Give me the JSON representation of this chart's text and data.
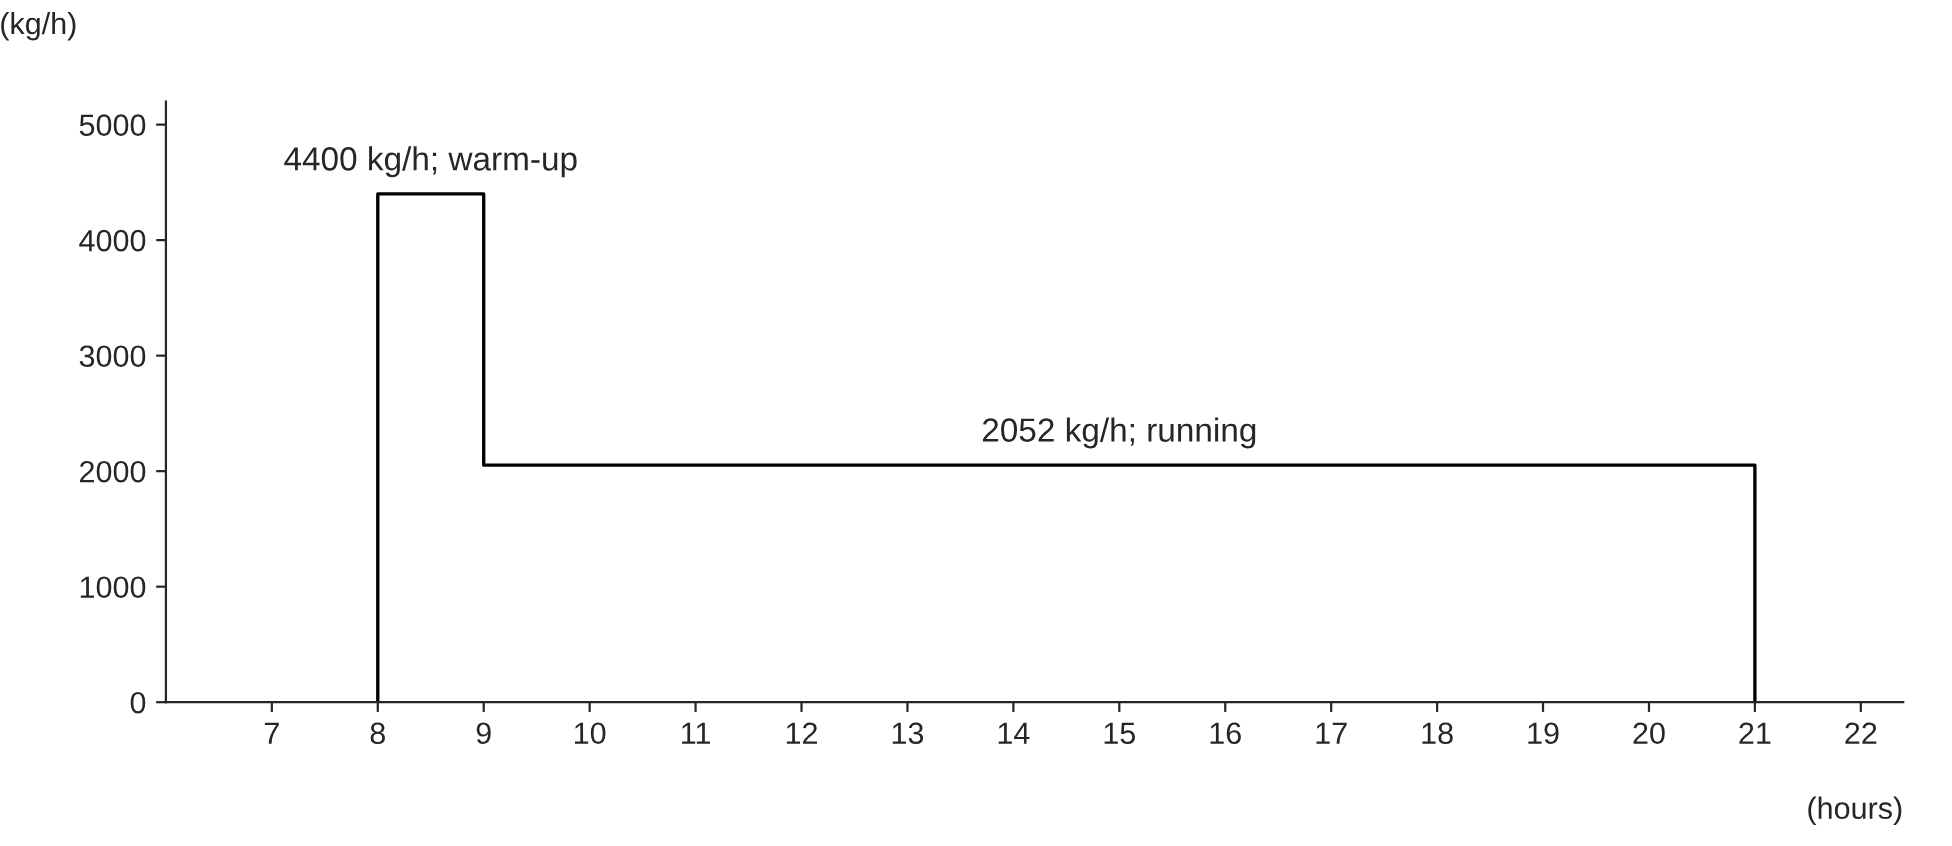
{
  "chart_data": {
    "type": "step",
    "xlabel": "(hours)",
    "ylabel": "(kg/h)",
    "x": [
      8,
      8,
      9,
      21
    ],
    "series": [
      {
        "color": "#000000",
        "values": [
          0,
          4400,
          2052,
          0
        ]
      }
    ],
    "xlim": [
      6,
      22.4
    ],
    "ylim": [
      0,
      5200
    ],
    "xticks": [
      7,
      8,
      9,
      10,
      11,
      12,
      13,
      14,
      15,
      16,
      17,
      18,
      19,
      20,
      21,
      22
    ],
    "yticks": [
      0,
      1000,
      2000,
      3000,
      4000,
      5000
    ],
    "annotations": [
      {
        "text": "4400 kg/h; warm-up",
        "x": 8.5,
        "y": 4400
      },
      {
        "text": "2052 kg/h; running",
        "x": 15,
        "y": 2052
      }
    ],
    "grid": false,
    "legend": false
  }
}
